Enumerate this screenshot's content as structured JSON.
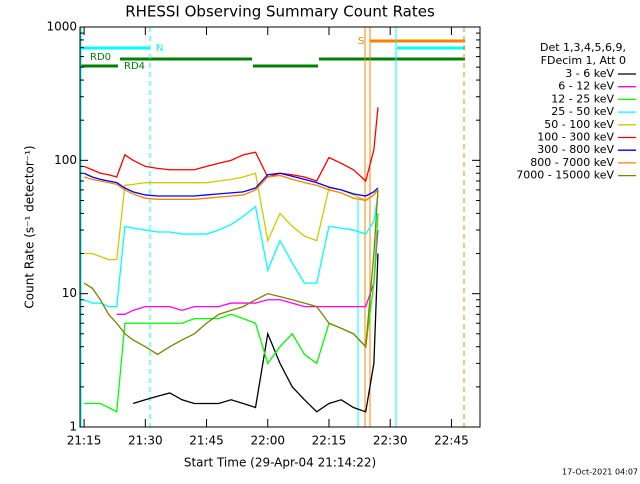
{
  "chart_data": {
    "type": "line",
    "title": "RHESSI Observing Summary Count Rates",
    "x_label": "Start Time (29-Apr-04 21:14:22)",
    "y_label": "Count Rate (s⁻¹ detector⁻¹)",
    "legend_header": [
      "Det 1,3,4,5,6,9,",
      "FDecim 1, Att 0"
    ],
    "annotations": [
      "RD0",
      "RD4",
      "N",
      "S"
    ],
    "footer": "17-Oct-2021 04:07",
    "log_y": true,
    "xlim": [
      "21:14",
      "22:52"
    ],
    "xticks": [
      "21:15",
      "21:30",
      "21:45",
      "22:00",
      "22:15",
      "22:30",
      "22:45"
    ],
    "ylim": [
      1,
      1000
    ],
    "yticks": [
      1,
      10,
      100,
      1000
    ],
    "x": [
      "21:15",
      "21:17",
      "21:19",
      "21:21",
      "21:23",
      "21:25",
      "21:27",
      "21:30",
      "21:33",
      "21:36",
      "21:39",
      "21:42",
      "21:45",
      "21:48",
      "21:51",
      "21:54",
      "21:57",
      "22:00",
      "22:03",
      "22:06",
      "22:09",
      "22:12",
      "22:15",
      "22:18",
      "22:21",
      "22:24",
      "22:26",
      "22:27",
      "22:28"
    ],
    "series": [
      {
        "name": "3 - 6 keV",
        "color": "#000000",
        "values": [
          null,
          null,
          null,
          null,
          null,
          null,
          1.5,
          1.6,
          1.7,
          1.8,
          1.6,
          1.5,
          1.5,
          1.5,
          1.6,
          1.5,
          1.4,
          5,
          3,
          2,
          1.6,
          1.3,
          1.5,
          1.6,
          1.4,
          1.3,
          3,
          20,
          null
        ]
      },
      {
        "name": "6 - 12 keV",
        "color": "#ff00ff",
        "values": [
          null,
          null,
          null,
          null,
          7,
          7,
          7.5,
          8,
          8,
          8,
          7.5,
          8,
          8,
          8,
          8.5,
          8.5,
          8.5,
          9,
          9,
          8.5,
          8,
          8,
          8,
          8,
          8,
          8,
          12,
          30,
          null
        ]
      },
      {
        "name": "12 - 25 keV",
        "color": "#00ff00",
        "values": [
          1.5,
          1.5,
          1.5,
          1.4,
          1.3,
          6,
          6,
          6,
          6,
          6,
          6,
          6.5,
          6.5,
          6.5,
          7,
          6.5,
          6,
          3,
          4,
          5,
          3.5,
          3,
          6,
          5.5,
          5,
          4,
          12,
          40,
          null
        ]
      },
      {
        "name": "25 - 50 keV",
        "color": "#00ffff",
        "values": [
          9,
          8.5,
          8.5,
          8,
          8,
          32,
          31,
          30,
          29,
          29,
          28,
          28,
          28,
          30,
          33,
          38,
          45,
          15,
          25,
          17,
          12,
          12,
          32,
          31,
          30,
          28,
          35,
          55,
          null
        ]
      },
      {
        "name": "50 - 100 keV",
        "color": "#cccc00",
        "values": [
          20,
          20,
          19,
          18,
          18,
          65,
          66,
          68,
          68,
          68,
          68,
          68,
          68,
          70,
          72,
          75,
          80,
          25,
          40,
          32,
          27,
          25,
          62,
          60,
          55,
          50,
          55,
          60,
          null
        ]
      },
      {
        "name": "100 - 300 keV",
        "color": "#ff0000",
        "values": [
          90,
          85,
          80,
          78,
          75,
          110,
          100,
          90,
          87,
          85,
          85,
          85,
          90,
          95,
          100,
          110,
          115,
          75,
          80,
          78,
          75,
          70,
          105,
          95,
          85,
          70,
          120,
          250,
          null
        ]
      },
      {
        "name": "300 - 800 keV",
        "color": "#0000ff",
        "values": [
          80,
          75,
          72,
          70,
          68,
          62,
          58,
          55,
          54,
          54,
          54,
          54,
          55,
          56,
          57,
          58,
          62,
          78,
          80,
          76,
          72,
          68,
          63,
          60,
          56,
          54,
          58,
          62,
          null
        ]
      },
      {
        "name": "800 - 7000 keV",
        "color": "#ff8000",
        "values": [
          75,
          72,
          70,
          68,
          66,
          60,
          56,
          52,
          51,
          51,
          51,
          51,
          52,
          53,
          54,
          55,
          60,
          75,
          77,
          72,
          68,
          65,
          60,
          57,
          52,
          50,
          55,
          60,
          null
        ]
      },
      {
        "name": "7000 - 15000 keV",
        "color": "#808000",
        "values": [
          12,
          11,
          9,
          7,
          6,
          5,
          4.5,
          4,
          3.5,
          4,
          4.5,
          5,
          6,
          7,
          7.5,
          8,
          9,
          10,
          9.5,
          9,
          8.5,
          8,
          6,
          5.5,
          5,
          4,
          20,
          60,
          null
        ]
      }
    ]
  }
}
